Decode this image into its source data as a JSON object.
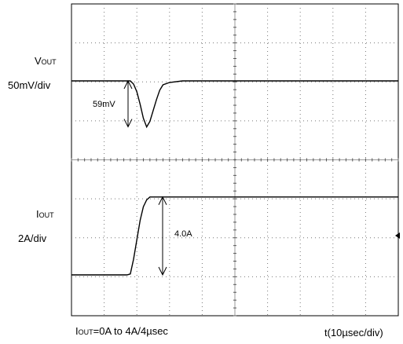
{
  "chart_data": {
    "type": "line",
    "title": "",
    "xlabel": "t(10µsec/div)",
    "x_per_div_us": 10,
    "divisions": {
      "x": 10,
      "y": 8
    },
    "grid": "dotted graticule",
    "test_condition": {
      "prefix": "I",
      "sub": "OUT",
      "text": "=0A to 4A/4µsec"
    },
    "channels": [
      {
        "id": "vout",
        "label": {
          "prefix": "V",
          "sub": "OUT"
        },
        "scale": "50mV/div",
        "units": "mV",
        "baseline": 0,
        "annotation": {
          "text": "59mV",
          "value": 59
        },
        "points_us": [
          [
            0,
            0
          ],
          [
            18,
            0
          ],
          [
            19,
            -4
          ],
          [
            20,
            -14
          ],
          [
            21,
            -30
          ],
          [
            22,
            -48
          ],
          [
            23,
            -59
          ],
          [
            24,
            -52
          ],
          [
            25,
            -38
          ],
          [
            26,
            -24
          ],
          [
            27,
            -12
          ],
          [
            28,
            -5
          ],
          [
            30,
            -2
          ],
          [
            34,
            0
          ],
          [
            100,
            0
          ]
        ]
      },
      {
        "id": "iout",
        "label": {
          "prefix": "I",
          "sub": "OUT"
        },
        "scale": "2A/div",
        "units": "A",
        "initial": 0,
        "final": 4.0,
        "annotation": {
          "text": "4.0A",
          "value": 4.0
        },
        "points_us": [
          [
            0,
            0
          ],
          [
            17,
            0
          ],
          [
            18,
            0.05
          ],
          [
            19,
            0.8
          ],
          [
            20,
            1.8
          ],
          [
            21,
            2.8
          ],
          [
            22,
            3.5
          ],
          [
            23,
            3.85
          ],
          [
            24,
            4.0
          ],
          [
            100,
            4.0
          ]
        ]
      }
    ]
  }
}
